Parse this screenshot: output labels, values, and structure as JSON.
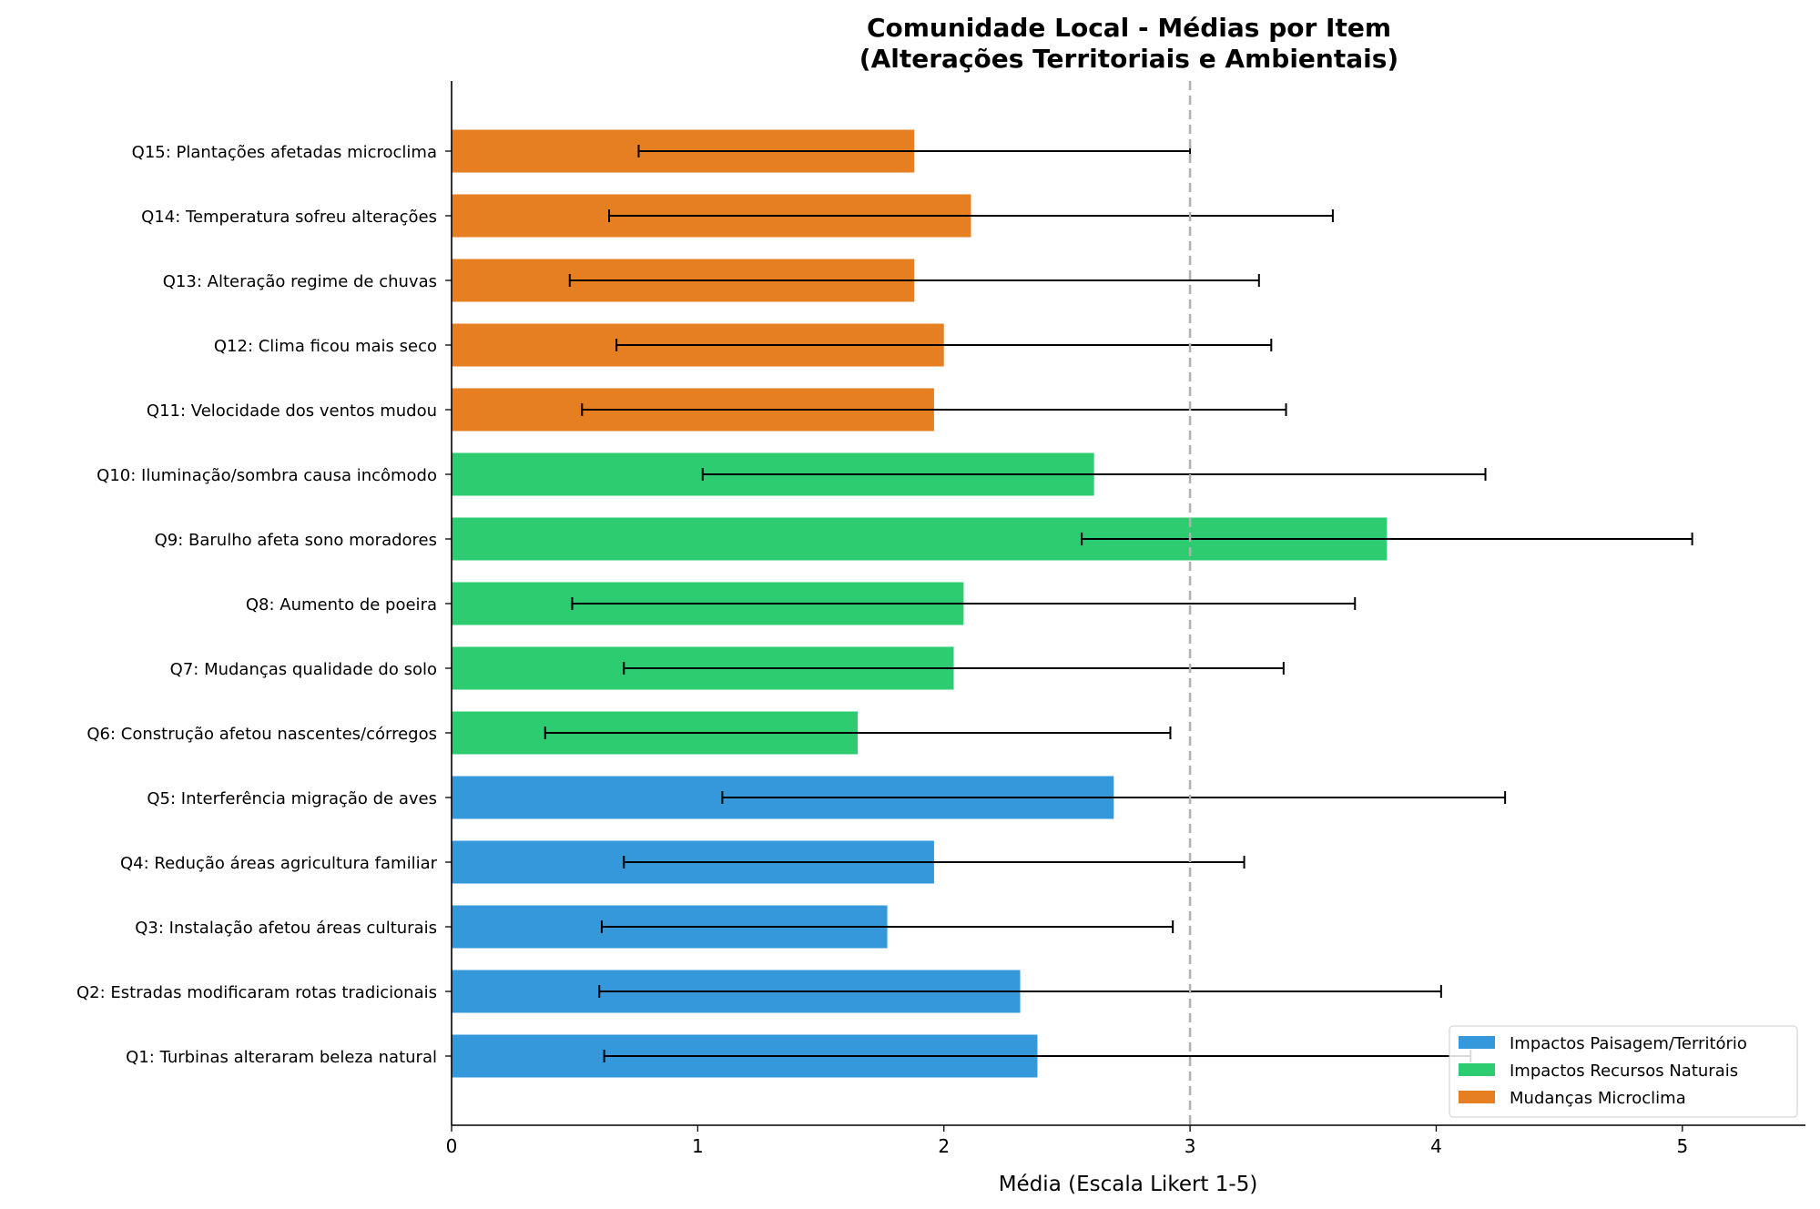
{
  "chart_data": {
    "type": "bar",
    "orientation": "horizontal",
    "title": "Comunidade Local - Médias por Item",
    "subtitle": "(Alterações Territoriais e Ambientais)",
    "xlabel": "Média (Escala Likert 1-5)",
    "ylabel": "",
    "xlim": [
      0,
      5.5
    ],
    "xticks": [
      "0",
      "1",
      "2",
      "3",
      "4",
      "5"
    ],
    "reference_line": {
      "x": 3,
      "style": "dashed",
      "color": "#b0b0b0"
    },
    "grid": false,
    "legend_position": "bottom-right",
    "groups": [
      {
        "name": "Impactos Paisagem/Território",
        "color": "#3498db"
      },
      {
        "name": "Impactos Recursos Naturais",
        "color": "#2ecc71"
      },
      {
        "name": "Mudanças Microclima",
        "color": "#e67e22"
      }
    ],
    "items": [
      {
        "label": "Q1: Turbinas alteraram beleza natural",
        "group": 0,
        "mean": 2.38,
        "sd": 1.76
      },
      {
        "label": "Q2: Estradas modificaram rotas tradicionais",
        "group": 0,
        "mean": 2.31,
        "sd": 1.71
      },
      {
        "label": "Q3: Instalação afetou áreas culturais",
        "group": 0,
        "mean": 1.77,
        "sd": 1.16
      },
      {
        "label": "Q4: Redução áreas agricultura familiar",
        "group": 0,
        "mean": 1.96,
        "sd": 1.26
      },
      {
        "label": "Q5: Interferência migração de aves",
        "group": 0,
        "mean": 2.69,
        "sd": 1.59
      },
      {
        "label": "Q6: Construção afetou nascentes/córregos",
        "group": 1,
        "mean": 1.65,
        "sd": 1.27
      },
      {
        "label": "Q7: Mudanças qualidade do solo",
        "group": 1,
        "mean": 2.04,
        "sd": 1.34
      },
      {
        "label": "Q8: Aumento de poeira",
        "group": 1,
        "mean": 2.08,
        "sd": 1.59
      },
      {
        "label": "Q9: Barulho afeta sono moradores",
        "group": 1,
        "mean": 3.8,
        "sd": 1.24
      },
      {
        "label": "Q10: Iluminação/sombra causa incômodo",
        "group": 1,
        "mean": 2.61,
        "sd": 1.59
      },
      {
        "label": "Q11: Velocidade dos ventos mudou",
        "group": 2,
        "mean": 1.96,
        "sd": 1.43
      },
      {
        "label": "Q12: Clima ficou mais seco",
        "group": 2,
        "mean": 2.0,
        "sd": 1.33
      },
      {
        "label": "Q13: Alteração regime de chuvas",
        "group": 2,
        "mean": 1.88,
        "sd": 1.4
      },
      {
        "label": "Q14: Temperatura sofreu alterações",
        "group": 2,
        "mean": 2.11,
        "sd": 1.47
      },
      {
        "label": "Q15: Plantações afetadas microclima",
        "group": 2,
        "mean": 1.88,
        "sd": 1.12
      }
    ]
  }
}
